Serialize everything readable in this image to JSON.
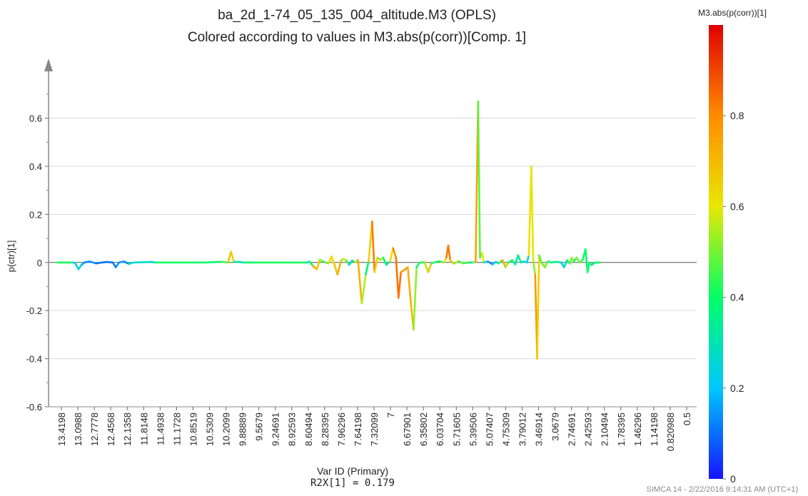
{
  "chart_data": {
    "type": "line",
    "title": "ba_2d_1-74_05_135_004_altitude.M3 (OPLS)",
    "subtitle": "Colored according to values in M3.abs(p(corr))[Comp. 1]",
    "ylabel": "p(ctr)[1]",
    "xlabel": "Var ID (Primary)",
    "stat": "R2X[1] = 0.179",
    "ylim": [
      -0.6,
      0.75
    ],
    "yticks": [
      -0.6,
      -0.4,
      -0.2,
      0,
      0.2,
      0.4,
      0.6
    ],
    "grid": true,
    "xticks": [
      "13.4198",
      "13.0988",
      "12.7778",
      "12.4568",
      "12.1358",
      "11.8148",
      "11.4938",
      "11.1728",
      "10.8519",
      "10.5309",
      "10.2099",
      "9.88889",
      "9.5679",
      "9.24691",
      "8.92593",
      "8.60494",
      "8.28395",
      "7.96296",
      "7.64198",
      "7.32099",
      "7",
      "6.67901",
      "6.35802",
      "6.03704",
      "5.71605",
      "5.39506",
      "5.07407",
      "4.75309",
      "3.79012",
      "3.46914",
      "3.0679",
      "2.74691",
      "2.42593",
      "2.10494",
      "1.78395",
      "1.46296",
      "1.14198",
      "0.820988",
      "0.5"
    ],
    "x_range": [
      13.4198,
      0.5
    ],
    "colorbar": {
      "title": "M3.abs(p(corr))[1]",
      "range": [
        0,
        1
      ],
      "ticks": [
        0,
        0.2,
        0.4,
        0.6,
        0.8
      ],
      "colors": [
        "#1414ff",
        "#00c8ff",
        "#00ff66",
        "#e8e800",
        "#ff8c00",
        "#e00000"
      ]
    },
    "series": [
      {
        "points": [
          [
            13.42,
            0,
            0.42
          ],
          [
            13.1,
            0,
            0.42
          ],
          [
            13.05,
            -0.003,
            0.15
          ],
          [
            12.98,
            -0.028,
            0.28
          ],
          [
            12.92,
            -0.01,
            0.25
          ],
          [
            12.86,
            0,
            0.1
          ],
          [
            12.75,
            0.004,
            0.15
          ],
          [
            12.62,
            -0.004,
            0.12
          ],
          [
            12.5,
            0,
            0.1
          ],
          [
            12.4,
            0.002,
            0.1
          ],
          [
            12.28,
            0,
            0.1
          ],
          [
            12.22,
            -0.02,
            0.12
          ],
          [
            12.15,
            0,
            0.15
          ],
          [
            12.05,
            0.004,
            0.15
          ],
          [
            11.95,
            -0.006,
            0.1
          ],
          [
            11.85,
            0,
            0.42
          ],
          [
            11.5,
            0.002,
            0.1
          ],
          [
            11.4,
            0,
            0.4
          ],
          [
            10.4,
            0,
            0.42
          ],
          [
            10.05,
            0.003,
            0.35
          ],
          [
            9.92,
            0,
            0.55
          ],
          [
            9.86,
            0.045,
            0.8
          ],
          [
            9.8,
            0.003,
            0.5
          ],
          [
            9.7,
            0.002,
            0.2
          ],
          [
            9.6,
            0,
            0.35
          ],
          [
            9.4,
            0,
            0.42
          ],
          [
            8.3,
            0,
            0.42
          ],
          [
            8.25,
            0.004,
            0.1
          ],
          [
            8.18,
            -0.015,
            0.7
          ],
          [
            8.1,
            -0.028,
            0.75
          ],
          [
            8.04,
            0.012,
            0.6
          ],
          [
            7.98,
            0.005,
            0.45
          ],
          [
            7.92,
            0,
            0.45
          ],
          [
            7.86,
            -0.004,
            0.5
          ],
          [
            7.8,
            0.025,
            0.75
          ],
          [
            7.74,
            -0.01,
            0.5
          ],
          [
            7.68,
            -0.05,
            0.85
          ],
          [
            7.6,
            0.01,
            0.6
          ],
          [
            7.55,
            0.015,
            0.45
          ],
          [
            7.5,
            0.008,
            0.7
          ],
          [
            7.44,
            -0.01,
            0.2
          ],
          [
            7.38,
            0.008,
            0.3
          ],
          [
            7.32,
            0,
            0.4
          ],
          [
            7.26,
            0.01,
            0.7
          ],
          [
            7.18,
            -0.17,
            0.75
          ],
          [
            7.1,
            -0.05,
            0.35
          ],
          [
            7.04,
            0.005,
            0.4
          ],
          [
            6.97,
            0.17,
            0.9
          ],
          [
            6.92,
            -0.04,
            0.75
          ],
          [
            6.86,
            0.02,
            0.55
          ],
          [
            6.8,
            0.01,
            0.5
          ],
          [
            6.74,
            0.02,
            0.6
          ],
          [
            6.68,
            -0.01,
            0.2
          ],
          [
            6.6,
            0.005,
            0.4
          ],
          [
            6.54,
            0.06,
            0.85
          ],
          [
            6.48,
            0.02,
            0.75
          ],
          [
            6.43,
            -0.147,
            0.92
          ],
          [
            6.38,
            -0.04,
            0.75
          ],
          [
            6.3,
            -0.03,
            0.8
          ],
          [
            6.24,
            -0.02,
            0.8
          ],
          [
            6.17,
            -0.18,
            0.65
          ],
          [
            6.12,
            -0.28,
            0.75
          ],
          [
            6.06,
            -0.02,
            0.3
          ],
          [
            6.0,
            0,
            0.45
          ],
          [
            5.95,
            0,
            0.45
          ],
          [
            5.9,
            0.002,
            0.3
          ],
          [
            5.82,
            -0.04,
            0.8
          ],
          [
            5.76,
            -0.005,
            0.55
          ],
          [
            5.7,
            0,
            0.4
          ],
          [
            5.6,
            0.005,
            0.4
          ],
          [
            5.5,
            0,
            0.5
          ],
          [
            5.45,
            0.02,
            0.75
          ],
          [
            5.41,
            0.07,
            0.9
          ],
          [
            5.37,
            0.01,
            0.75
          ],
          [
            5.3,
            -0.005,
            0.6
          ],
          [
            5.2,
            0.005,
            0.45
          ],
          [
            5.1,
            -0.004,
            0.5
          ],
          [
            5.0,
            0,
            0.42
          ],
          [
            4.9,
            0,
            0.3
          ],
          [
            4.85,
            0.003,
            0.65
          ],
          [
            4.8,
            0.67,
            0.85
          ],
          [
            4.76,
            0.02,
            0.1
          ],
          [
            4.72,
            0.04,
            0.85
          ],
          [
            4.68,
            0,
            0.35
          ],
          [
            4.6,
            0.004,
            0.15
          ],
          [
            4.5,
            -0.008,
            0.12
          ],
          [
            4.44,
            0.003,
            0.3
          ],
          [
            4.38,
            -0.004,
            0.2
          ],
          [
            4.3,
            0.01,
            0.7
          ],
          [
            4.24,
            -0.02,
            0.75
          ],
          [
            4.18,
            0,
            0.3
          ],
          [
            4.1,
            0.01,
            0.55
          ],
          [
            4.04,
            -0.008,
            0.2
          ],
          [
            3.98,
            0.03,
            0.4
          ],
          [
            3.92,
            0,
            0.35
          ],
          [
            3.86,
            0.004,
            0.25
          ],
          [
            3.8,
            0,
            0.2
          ],
          [
            3.76,
            0.03,
            0.3
          ],
          [
            3.71,
            0.4,
            0.92
          ],
          [
            3.67,
            0.002,
            0.3
          ],
          [
            3.63,
            -0.05,
            0.75
          ],
          [
            3.59,
            -0.4,
            0.8
          ],
          [
            3.55,
            0.03,
            0.5
          ],
          [
            3.49,
            -0.005,
            0.45
          ],
          [
            3.43,
            -0.02,
            0.55
          ],
          [
            3.37,
            0.005,
            0.45
          ],
          [
            3.3,
            0,
            0.4
          ],
          [
            3.2,
            0.003,
            0.3
          ],
          [
            3.1,
            0,
            0.35
          ],
          [
            3.04,
            -0.02,
            0.15
          ],
          [
            2.98,
            0.01,
            0.4
          ],
          [
            2.92,
            -0.005,
            0.4
          ],
          [
            2.88,
            0.02,
            0.6
          ],
          [
            2.84,
            0.005,
            0.45
          ],
          [
            2.78,
            0.02,
            0.4
          ],
          [
            2.72,
            0,
            0.6
          ],
          [
            2.66,
            0.01,
            0.35
          ],
          [
            2.6,
            0.055,
            0.45
          ],
          [
            2.56,
            -0.04,
            0.35
          ],
          [
            2.52,
            0,
            0.45
          ],
          [
            2.48,
            -0.01,
            0.4
          ],
          [
            2.44,
            -0.005,
            0.2
          ],
          [
            2.4,
            0,
            0.4
          ],
          [
            2.3,
            0,
            0.42
          ]
        ]
      }
    ]
  },
  "footer": "SIMCA 14 - 2/22/2016 9:14:31 AM (UTC+1)"
}
